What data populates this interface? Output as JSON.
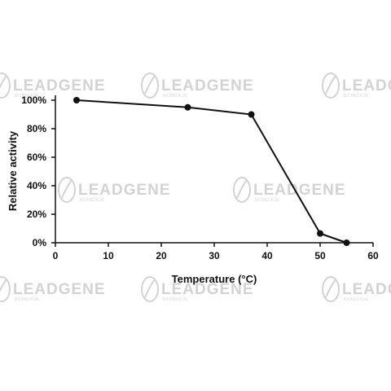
{
  "watermark": {
    "brand": "LEADGENE",
    "tagline": "BIOMEDICAL"
  },
  "colors": {
    "line": "#111111",
    "axis": "#111111",
    "watermark": "#cfcfcf"
  },
  "chart_data": {
    "type": "line",
    "title": "",
    "xlabel": "Temperature (°C)",
    "ylabel": "Relative activity",
    "xlim": [
      0,
      60
    ],
    "ylim": [
      0,
      1
    ],
    "x_ticks": [
      0,
      10,
      20,
      30,
      40,
      50,
      60
    ],
    "x_tick_labels": [
      "0",
      "10",
      "20",
      "30",
      "40",
      "50",
      "60"
    ],
    "y_ticks": [
      0,
      0.2,
      0.4,
      0.6,
      0.8,
      1.0
    ],
    "y_tick_labels": [
      "0%",
      "20%",
      "40%",
      "60%",
      "80%",
      "100%"
    ],
    "grid": false,
    "legend": "none",
    "series": [
      {
        "x": [
          4,
          25,
          37,
          50,
          55
        ],
        "y": [
          1.0,
          0.95,
          0.9,
          0.065,
          0.0
        ]
      }
    ]
  }
}
